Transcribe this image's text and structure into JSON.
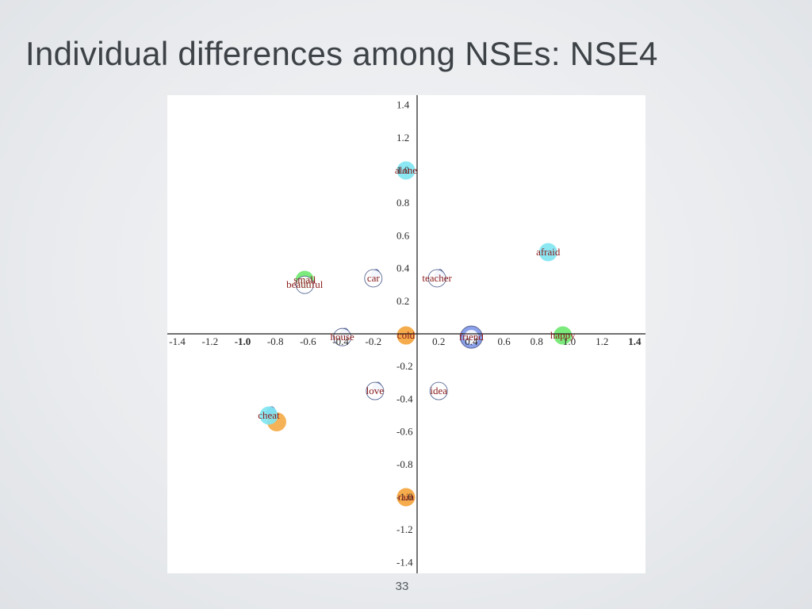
{
  "slide": {
    "title": "Individual differences among NSEs: NSE4",
    "page_number": "33"
  },
  "colors": {
    "word_label": "#8b1a1a",
    "axis": "#1a1a1a",
    "cyan": "#7fe6f2",
    "green": "#6ee86e",
    "orange": "#f5a43a",
    "blue": "#7f96e8",
    "outline": "#4a5a8a"
  },
  "chart_data": {
    "type": "scatter",
    "title": "",
    "xlabel": "",
    "ylabel": "",
    "xlim": [
      -1.45,
      1.45
    ],
    "ylim": [
      -1.45,
      1.45
    ],
    "grid": false,
    "legend": "none",
    "x_ticks": [
      {
        "value": -1.4,
        "label": "-1.4",
        "bold": false
      },
      {
        "value": -1.2,
        "label": "-1.2",
        "bold": false
      },
      {
        "value": -1.0,
        "label": "-1.0",
        "bold": true
      },
      {
        "value": -0.8,
        "label": "-0.8",
        "bold": false
      },
      {
        "value": -0.6,
        "label": "-0.6",
        "bold": false
      },
      {
        "value": -0.4,
        "label": "-0.4",
        "bold": false
      },
      {
        "value": -0.2,
        "label": "-0.2",
        "bold": false
      },
      {
        "value": 0.2,
        "label": "0.2",
        "bold": false
      },
      {
        "value": 0.4,
        "label": "0.4",
        "bold": false
      },
      {
        "value": 0.6,
        "label": "0.6",
        "bold": false
      },
      {
        "value": 0.8,
        "label": "0.8",
        "bold": false
      },
      {
        "value": 1.0,
        "label": "1.0",
        "bold": false
      },
      {
        "value": 1.2,
        "label": "1.2",
        "bold": false
      },
      {
        "value": 1.4,
        "label": "1.4",
        "bold": true
      }
    ],
    "y_ticks": [
      {
        "value": 1.4,
        "label": "1.4"
      },
      {
        "value": 1.2,
        "label": "1.2"
      },
      {
        "value": 1.0,
        "label": "1.0"
      },
      {
        "value": 0.8,
        "label": "0.8"
      },
      {
        "value": 0.6,
        "label": "0.6"
      },
      {
        "value": 0.4,
        "label": "0.4"
      },
      {
        "value": 0.2,
        "label": "0.2"
      },
      {
        "value": -0.2,
        "label": "-0.2"
      },
      {
        "value": -0.4,
        "label": "-0.4"
      },
      {
        "value": -0.6,
        "label": "-0.6"
      },
      {
        "value": -0.8,
        "label": "-0.8"
      },
      {
        "value": -1.0,
        "label": "-1.0"
      },
      {
        "value": -1.2,
        "label": "-1.2"
      },
      {
        "value": -1.4,
        "label": "-1.4"
      }
    ],
    "points": [
      {
        "label": "alone",
        "x": 0.0,
        "y": 1.0,
        "fill": "cyan"
      },
      {
        "label": "afraid",
        "x": 0.87,
        "y": 0.5,
        "fill": "cyan"
      },
      {
        "label": "small",
        "x": -0.62,
        "y": 0.33,
        "fill": "green"
      },
      {
        "label": "beautiful",
        "x": -0.62,
        "y": 0.3,
        "fill": "none"
      },
      {
        "label": "car",
        "x": -0.2,
        "y": 0.34,
        "fill": "none",
        "blob": true
      },
      {
        "label": "teacher",
        "x": 0.19,
        "y": 0.34,
        "fill": "none",
        "blob": true
      },
      {
        "label": "house",
        "x": -0.39,
        "y": -0.02,
        "fill": "none",
        "blob": true
      },
      {
        "label": "cold",
        "x": 0.0,
        "y": -0.01,
        "fill": "orange"
      },
      {
        "label": "friend",
        "x": 0.4,
        "y": -0.02,
        "fill": "blue",
        "ring": true
      },
      {
        "label": "happy",
        "x": 0.96,
        "y": -0.01,
        "fill": "green"
      },
      {
        "label": "love",
        "x": -0.19,
        "y": -0.35,
        "fill": "none",
        "blob": true
      },
      {
        "label": "idea",
        "x": 0.2,
        "y": -0.35,
        "fill": "none"
      },
      {
        "label": "cheat",
        "x": -0.84,
        "y": -0.5,
        "fill": "cyan",
        "extra": "orange",
        "blob": true
      },
      {
        "label": "rain",
        "x": 0.0,
        "y": -1.0,
        "fill": "orange"
      }
    ]
  }
}
